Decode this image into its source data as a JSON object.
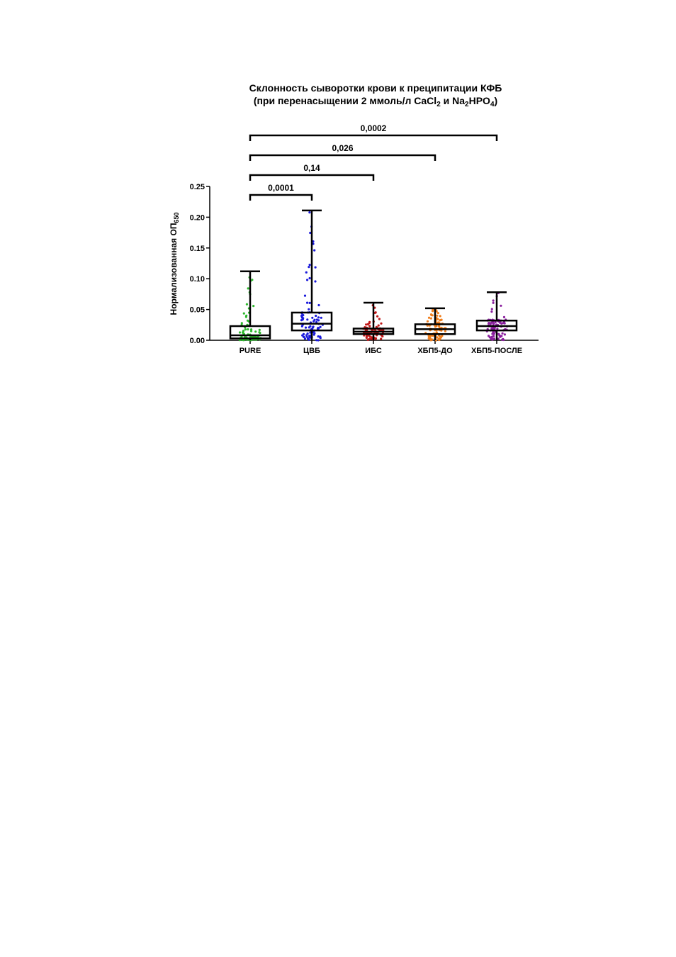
{
  "chart_data": {
    "type": "box",
    "title": "Склонность сыворотки крови к преципитации КФБ",
    "subtitle": {
      "prefix": "(при перенасыщении 2 ммоль/л CaCl",
      "sub1": "2",
      "mid": " и Na",
      "sub2": "2",
      "mid2": "HPO",
      "sub3": "4",
      "suffix": ")"
    },
    "ylabel": {
      "main": "Нормализованная ОП",
      "sub": "650"
    },
    "ylim": [
      0,
      0.25
    ],
    "yticks": [
      "0.00",
      "0.05",
      "0.10",
      "0.15",
      "0.20",
      "0.25"
    ],
    "grid": false,
    "categories": [
      "PURE",
      "ЦВБ",
      "ИБС",
      "ХБП5-ДО",
      "ХБП5-ПОСЛЕ"
    ],
    "colors": [
      "#2eb82e",
      "#1a1adb",
      "#c01818",
      "#f07f1e",
      "#8a1f9e"
    ],
    "boxes": [
      {
        "min": 0.0,
        "q1": 0.003,
        "median": 0.008,
        "q3": 0.023,
        "max": 0.112
      },
      {
        "min": 0.0,
        "q1": 0.016,
        "median": 0.027,
        "q3": 0.045,
        "max": 0.211
      },
      {
        "min": 0.0,
        "q1": 0.01,
        "median": 0.014,
        "q3": 0.019,
        "max": 0.061
      },
      {
        "min": 0.0,
        "q1": 0.01,
        "median": 0.018,
        "q3": 0.026,
        "max": 0.052
      },
      {
        "min": 0.0,
        "q1": 0.016,
        "median": 0.023,
        "q3": 0.032,
        "max": 0.078
      }
    ],
    "comparisons": [
      {
        "from": "PURE",
        "to": "ЦВБ",
        "p": "0,0001"
      },
      {
        "from": "PURE",
        "to": "ИБС",
        "p": "0,14"
      },
      {
        "from": "PURE",
        "to": "ХБП5-ДО",
        "p": "0,026"
      },
      {
        "from": "PURE",
        "to": "ХБП5-ПОСЛЕ",
        "p": "0,0002"
      }
    ]
  }
}
